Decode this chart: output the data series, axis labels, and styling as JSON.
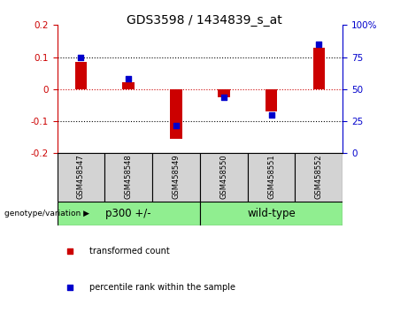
{
  "title": "GDS3598 / 1434839_s_at",
  "samples": [
    "GSM458547",
    "GSM458548",
    "GSM458549",
    "GSM458550",
    "GSM458551",
    "GSM458552"
  ],
  "transformed_count": [
    0.085,
    0.022,
    -0.155,
    -0.025,
    -0.07,
    0.128
  ],
  "percentile_rank": [
    75,
    58,
    22,
    44,
    30,
    85
  ],
  "ylim_left": [
    -0.2,
    0.2
  ],
  "ylim_right": [
    0,
    100
  ],
  "yticks_left": [
    -0.2,
    -0.1,
    0.0,
    0.1,
    0.2
  ],
  "yticks_right": [
    0,
    25,
    50,
    75,
    100
  ],
  "ytick_labels_right": [
    "0",
    "25",
    "50",
    "75",
    "100%"
  ],
  "bar_color": "#cc0000",
  "dot_color": "#0000cc",
  "bar_width": 0.25,
  "group1_label": "p300 +/-",
  "group2_label": "wild-type",
  "group_label_prefix": "genotype/variation",
  "group1_color": "#90ee90",
  "group2_color": "#90ee90",
  "legend_red_label": "transformed count",
  "legend_blue_label": "percentile rank within the sample",
  "tick_color_left": "#cc0000",
  "tick_color_right": "#0000cc",
  "zero_line_color": "#cc0000",
  "dotted_line_color": "#000000",
  "background_color": "#ffffff",
  "sample_box_color": "#d3d3d3",
  "title_fontsize": 10
}
